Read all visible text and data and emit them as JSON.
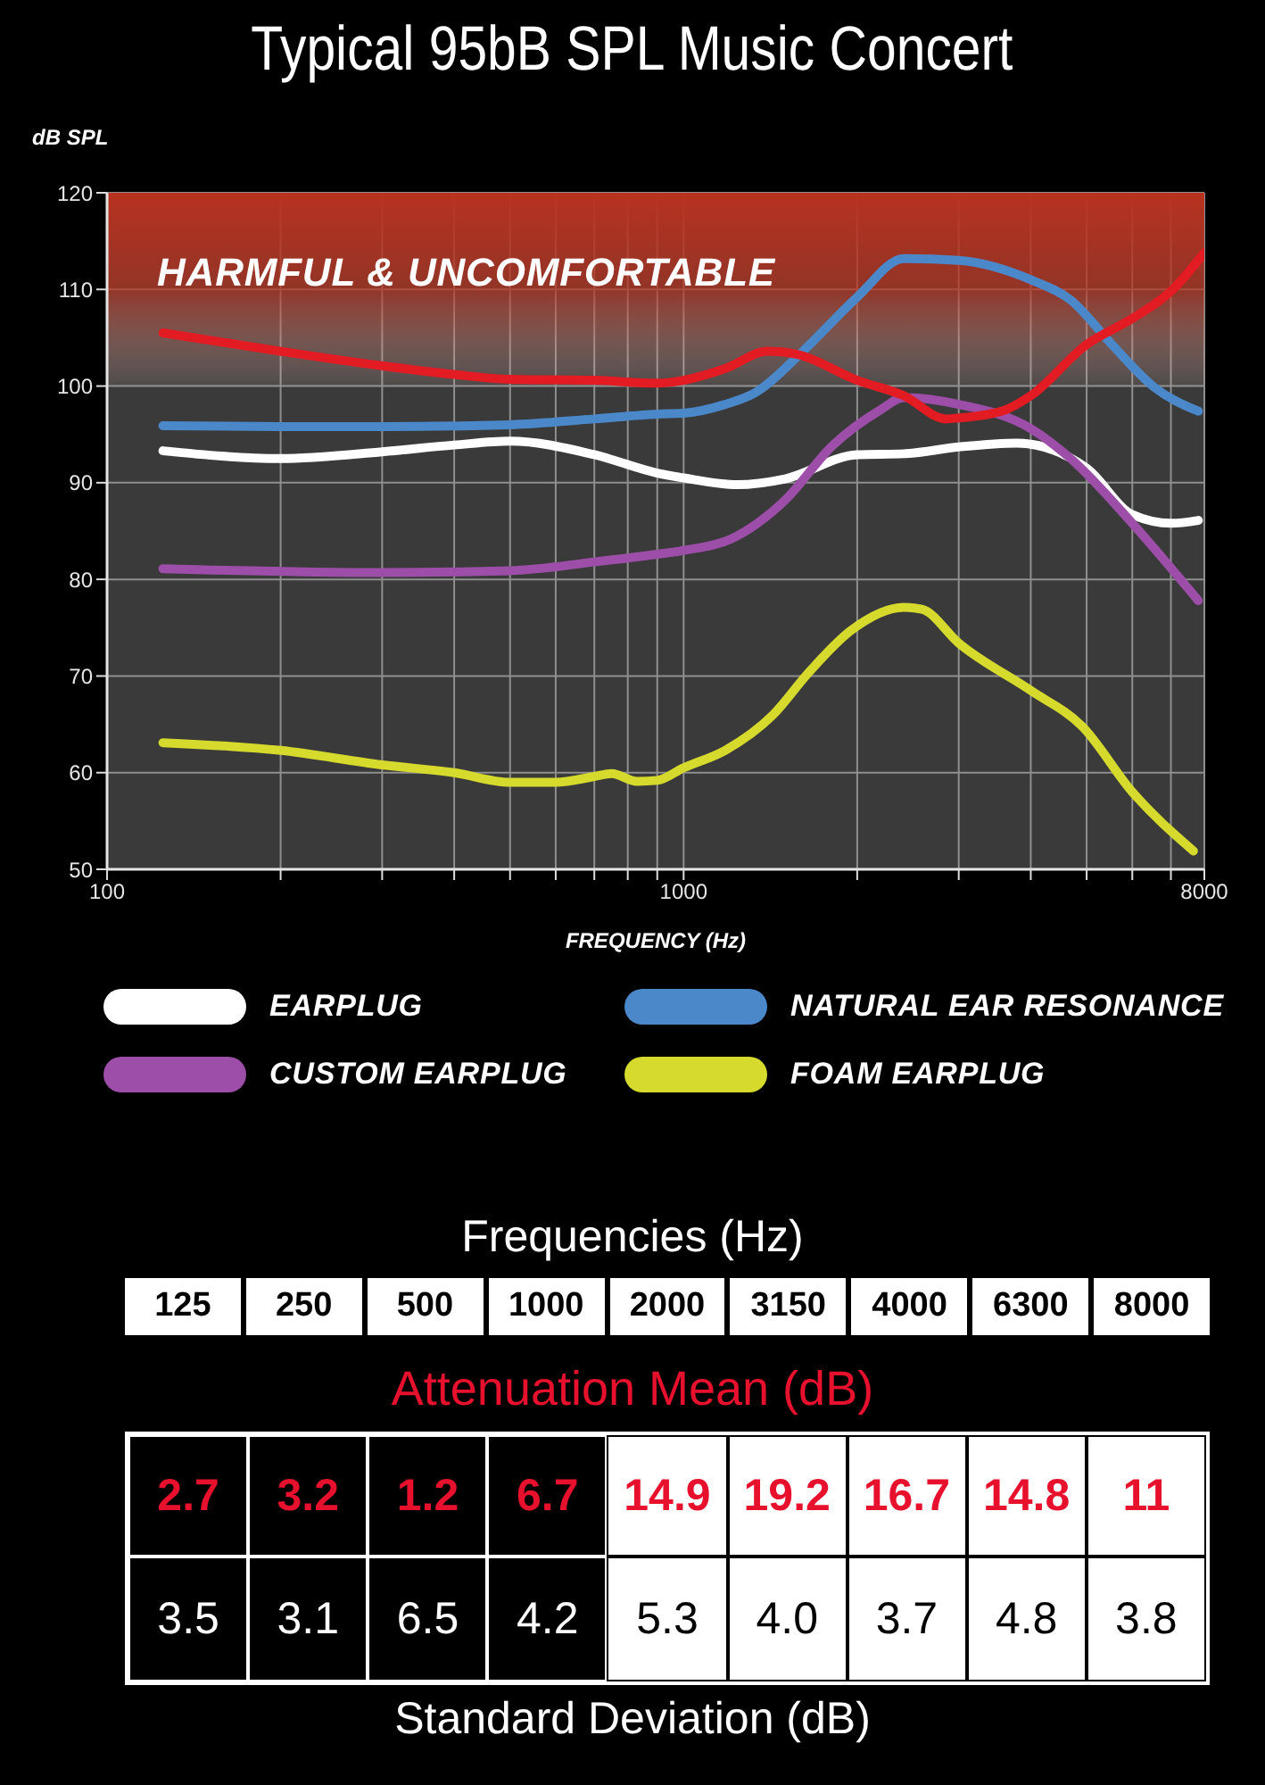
{
  "chart_data": [
    {
      "type": "line",
      "title": "Typical 95bB SPL Music Concert",
      "ylabel": "dB SPL",
      "xlabel": "FREQUENCY (Hz)",
      "log": "x",
      "xlim": [
        100,
        8000
      ],
      "xticks": [
        100,
        {
          "value": 200,
          "label": null
        },
        {
          "value": 300,
          "label": null
        },
        {
          "value": 400,
          "label": null
        },
        {
          "value": 500,
          "label": null
        },
        {
          "value": 600,
          "label": null
        },
        {
          "value": 700,
          "label": null
        },
        {
          "value": 800,
          "label": null
        },
        {
          "value": 900,
          "label": null
        },
        1000,
        {
          "value": 2000,
          "label": null
        },
        {
          "value": 3000,
          "label": null
        },
        {
          "value": 4000,
          "label": null
        },
        {
          "value": 5000,
          "label": null
        },
        {
          "value": 6000,
          "label": null
        },
        {
          "value": 7000,
          "label": null
        },
        8000
      ],
      "ylim": [
        50,
        120
      ],
      "yticks": [
        50,
        60,
        70,
        80,
        90,
        100,
        110,
        120
      ],
      "grid": true,
      "legend": "bottom",
      "bands": [
        {
          "axis": "y",
          "from": 100,
          "to": 120,
          "label": "HARMFUL & UNCOMFORTABLE",
          "color": "#b8321f"
        }
      ],
      "series": [
        {
          "name": "EARPLUG",
          "color": "#ffffff",
          "x": [
            125,
            200,
            300,
            400,
            500,
            700,
            900,
            1000,
            1240,
            1500,
            2000,
            2410,
            3000,
            3780,
            5000,
            6000,
            7000,
            7810
          ],
          "values": [
            93.3,
            92.5,
            93.2,
            93.9,
            94.3,
            92.9,
            91.0,
            90.5,
            89.8,
            90.4,
            92.9,
            93.0,
            93.7,
            94.1,
            91.5,
            86.7,
            85.8,
            86.1
          ]
        },
        {
          "name": "NATURAL EAR RESONANCE",
          "color": "#4b88c9",
          "x": [
            125,
            200,
            300,
            500,
            700,
            900,
            1000,
            1180,
            1330,
            1610,
            2000,
            2410,
            3000,
            4000,
            4690,
            5530,
            6540,
            7810
          ],
          "values": [
            95.9,
            95.8,
            95.8,
            96.0,
            96.6,
            97.1,
            97.2,
            98.1,
            99.3,
            103.6,
            109.2,
            113.2,
            113.0,
            111.0,
            108.9,
            104.3,
            99.9,
            97.4
          ]
        },
        {
          "name": "CUSTOM EARPLUG",
          "color": "#9d4ea8",
          "x": [
            125,
            300,
            500,
            700,
            900,
            1000,
            1210,
            1500,
            1810,
            2190,
            2410,
            3000,
            4000,
            4690,
            6000,
            7810
          ],
          "values": [
            81.1,
            80.7,
            80.9,
            81.8,
            82.6,
            83.0,
            84.2,
            88.2,
            93.8,
            97.5,
            98.8,
            98.1,
            95.6,
            92.5,
            85.8,
            77.8
          ]
        },
        {
          "name": "FOAM EARPLUG",
          "color": "#d6da2c",
          "x": [
            125,
            200,
            300,
            400,
            500,
            600,
            700,
            750,
            830,
            900,
            1000,
            1180,
            1430,
            1650,
            1950,
            2410,
            2590,
            3000,
            4000,
            4910,
            6000,
            7660
          ],
          "values": [
            63.1,
            62.3,
            60.8,
            60.0,
            59.0,
            59.0,
            59.6,
            59.9,
            59.1,
            59.2,
            60.5,
            62.3,
            66.0,
            70.4,
            74.7,
            77.1,
            76.9,
            73.4,
            68.5,
            64.8,
            58.0,
            51.9
          ]
        },
        {
          "color": "#e31b23",
          "x": [
            125,
            200,
            300,
            400,
            500,
            700,
            900,
            1000,
            1180,
            1400,
            1570,
            2000,
            2410,
            2850,
            3000,
            3600,
            4000,
            5000,
            6000,
            7000,
            8000
          ],
          "values": [
            105.5,
            103.6,
            102.1,
            101.2,
            100.7,
            100.6,
            100.3,
            100.6,
            101.8,
            103.6,
            103.3,
            100.6,
            99.0,
            96.6,
            96.7,
            97.5,
            99.0,
            104.3,
            107.0,
            109.8,
            113.8
          ]
        }
      ]
    },
    {
      "type": "other",
      "xlabel": "Frequencies (Hz)",
      "categories": [
        "125",
        "250",
        "500",
        "1000",
        "2000",
        "3150",
        "4000",
        "6300",
        "8000"
      ],
      "data_labels": true,
      "series": [
        {
          "name": "Attenuation Mean (dB)",
          "color": "#e8112d",
          "values": [
            2.7,
            3.2,
            1.2,
            6.7,
            14.9,
            19.2,
            16.7,
            14.8,
            11
          ],
          "colors": [
            "#000000",
            "#000000",
            "#000000",
            "#000000",
            "#ffffff",
            "#ffffff",
            "#ffffff",
            "#ffffff",
            "#ffffff"
          ]
        },
        {
          "name": "Standard Deviation (dB)",
          "values": [
            3.5,
            3.1,
            6.5,
            4.2,
            5.3,
            4.0,
            3.7,
            4.8,
            3.8
          ],
          "value_labels": [
            "3.5",
            "3.1",
            "6.5",
            "4.2",
            "5.3",
            "4.0",
            "3.7",
            "4.8",
            "3.8"
          ],
          "colors": [
            "#000000",
            "#000000",
            "#000000",
            "#000000",
            "#ffffff",
            "#ffffff",
            "#ffffff",
            "#ffffff",
            "#ffffff"
          ]
        }
      ]
    }
  ]
}
